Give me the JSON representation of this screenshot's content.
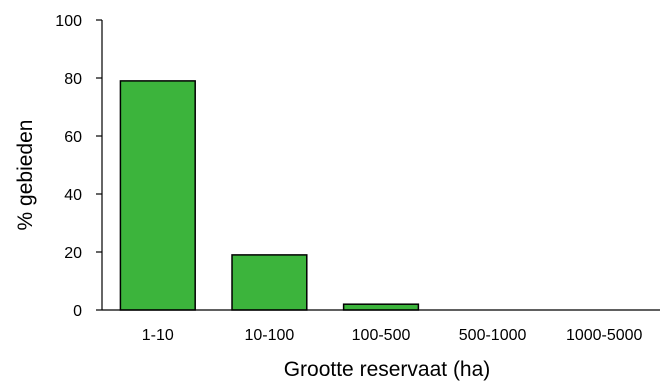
{
  "chart_data": {
    "type": "bar",
    "title": "",
    "xlabel": "Grootte reservaat (ha)",
    "ylabel": "% gebieden",
    "categories": [
      "1-10",
      "10-100",
      "100-500",
      "500-1000",
      "1000-5000"
    ],
    "values": [
      79,
      19,
      2,
      0,
      0
    ],
    "ylim": [
      0,
      100
    ],
    "yticks": [
      "0",
      "20",
      "40",
      "60",
      "80",
      "100"
    ],
    "grid": false,
    "legend": "none",
    "bar_color": "#3cb43c"
  }
}
